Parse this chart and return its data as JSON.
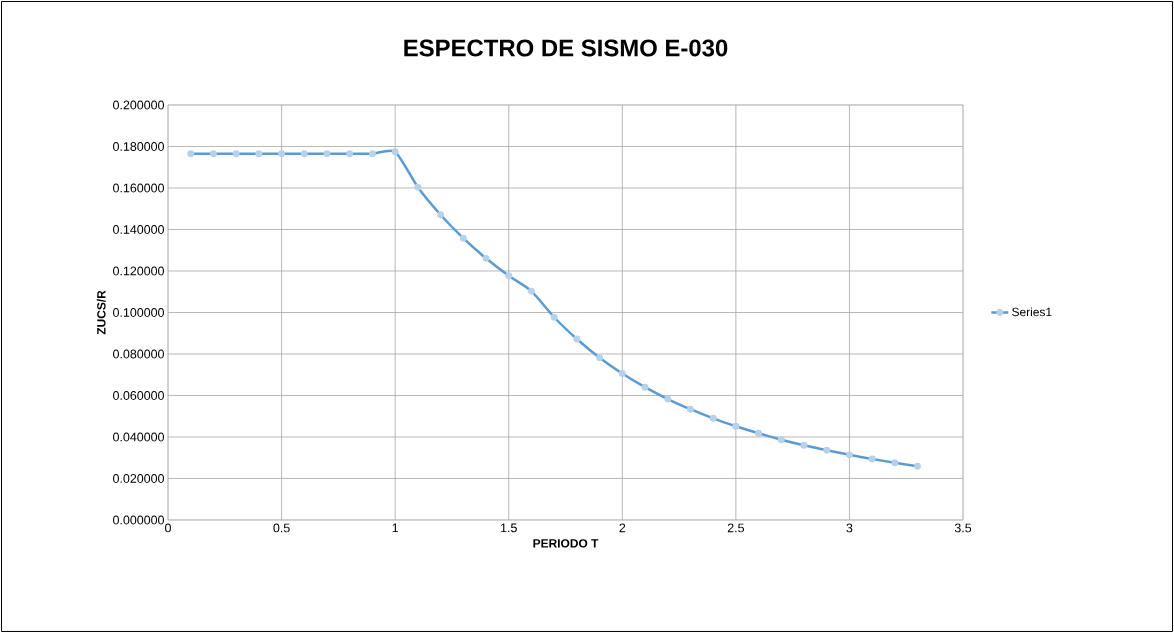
{
  "chart_data": {
    "type": "line",
    "title": "ESPECTRO DE SISMO E-030",
    "xlabel": "PERIODO T",
    "ylabel": "ZUCS/R",
    "x": [
      0.1,
      0.2,
      0.3,
      0.4,
      0.5,
      0.6,
      0.7,
      0.8,
      0.9,
      1.0,
      1.1,
      1.2,
      1.3,
      1.4,
      1.5,
      1.6,
      1.7,
      1.8,
      1.9,
      2.0,
      2.1,
      2.2,
      2.3,
      2.4,
      2.5,
      2.6,
      2.7,
      2.8,
      2.9,
      3.0,
      3.1,
      3.2,
      3.3
    ],
    "series": [
      {
        "name": "Series1",
        "color": "#5b9bd5",
        "values": [
          0.1765,
          0.1765,
          0.1765,
          0.1765,
          0.1765,
          0.1765,
          0.1765,
          0.1765,
          0.1765,
          0.1775,
          0.1604,
          0.1471,
          0.1358,
          0.1261,
          0.1177,
          0.1103,
          0.0977,
          0.0872,
          0.0782,
          0.0706,
          0.064,
          0.0583,
          0.0534,
          0.049,
          0.0452,
          0.0418,
          0.0387,
          0.036,
          0.0336,
          0.0314,
          0.0294,
          0.0276,
          0.0259
        ]
      }
    ],
    "xlim": [
      0,
      3.5
    ],
    "xticks": [
      0,
      0.5,
      1,
      1.5,
      2,
      2.5,
      3,
      3.5
    ],
    "ylim": [
      0,
      0.2
    ],
    "yticks": [
      {
        "value": 0,
        "label": "0.000000"
      },
      {
        "value": 0.02,
        "label": "0.020000"
      },
      {
        "value": 0.04,
        "label": "0.040000"
      },
      {
        "value": 0.06,
        "label": "0.060000"
      },
      {
        "value": 0.08,
        "label": "0.080000"
      },
      {
        "value": 0.1,
        "label": "0.100000"
      },
      {
        "value": 0.12,
        "label": "0.120000"
      },
      {
        "value": 0.14,
        "label": "0.140000"
      },
      {
        "value": 0.16,
        "label": "0.160000"
      },
      {
        "value": 0.18,
        "label": "0.180000"
      },
      {
        "value": 0.2,
        "label": "0.200000"
      }
    ],
    "grid": true,
    "legend": "right",
    "marker": "circle",
    "line_style": "solid"
  }
}
